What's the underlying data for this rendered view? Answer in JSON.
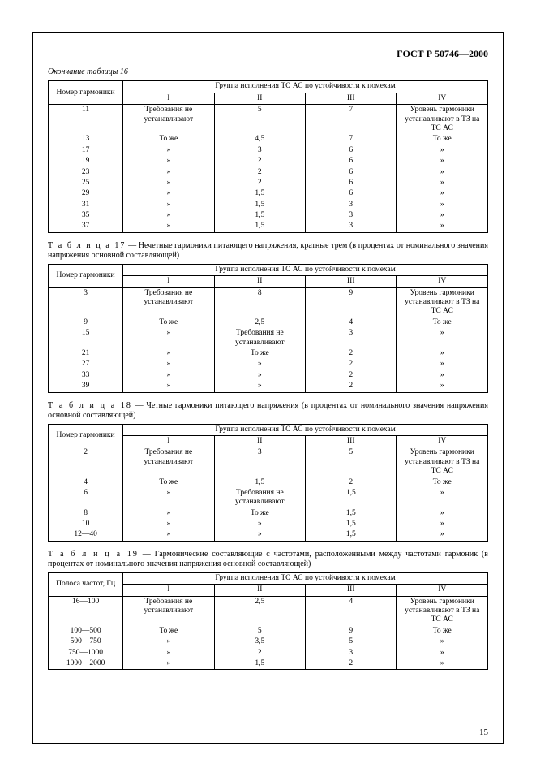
{
  "doc_code": "ГОСТ Р 50746—2000",
  "page_number": "15",
  "group_header": "Группа исполнения ТС АС по устойчивости к помехам",
  "group_cols": [
    "I",
    "II",
    "III",
    "IV"
  ],
  "col_harm": "Номер гармоники",
  "col_band": "Полоса частот, Гц",
  "text": {
    "req_not_set": "Требования не устанавливают",
    "same": "То же",
    "ditto": "»",
    "level_set": "Уровень гармоники устанавливают в ТЗ на ТС АС"
  },
  "table16": {
    "caption": "Окончание таблицы 16",
    "rows": [
      {
        "n": "11",
        "c2": "req",
        "c3": "5",
        "c4": "7",
        "c5": "level"
      },
      {
        "n": "13",
        "c2": "same",
        "c3": "4,5",
        "c4": "7",
        "c5": "same"
      },
      {
        "n": "17",
        "c2": "ditto",
        "c3": "3",
        "c4": "6",
        "c5": "ditto"
      },
      {
        "n": "19",
        "c2": "ditto",
        "c3": "2",
        "c4": "6",
        "c5": "ditto"
      },
      {
        "n": "23",
        "c2": "ditto",
        "c3": "2",
        "c4": "6",
        "c5": "ditto"
      },
      {
        "n": "25",
        "c2": "ditto",
        "c3": "2",
        "c4": "6",
        "c5": "ditto"
      },
      {
        "n": "29",
        "c2": "ditto",
        "c3": "1,5",
        "c4": "6",
        "c5": "ditto"
      },
      {
        "n": "31",
        "c2": "ditto",
        "c3": "1,5",
        "c4": "3",
        "c5": "ditto"
      },
      {
        "n": "35",
        "c2": "ditto",
        "c3": "1,5",
        "c4": "3",
        "c5": "ditto"
      },
      {
        "n": "37",
        "c2": "ditto",
        "c3": "1,5",
        "c4": "3",
        "c5": "ditto"
      }
    ]
  },
  "table17": {
    "caption_prefix": "Т а б л и ц а 17",
    "caption": " — Нечетные гармоники питающего напряжения, кратные трем (в процентах от номинального значения напряжения основной составляющей)",
    "rows": [
      {
        "n": "3",
        "c2": "req",
        "c3": "8",
        "c4": "9",
        "c5": "level"
      },
      {
        "n": "9",
        "c2": "same",
        "c3": "2,5",
        "c4": "4",
        "c5": "same"
      },
      {
        "n": "15",
        "c2": "ditto",
        "c3": "reqtxt",
        "c4": "3",
        "c5": "ditto"
      },
      {
        "n": "21",
        "c2": "ditto",
        "c3": "same",
        "c4": "2",
        "c5": "ditto"
      },
      {
        "n": "27",
        "c2": "ditto",
        "c3": "ditto",
        "c4": "2",
        "c5": "ditto"
      },
      {
        "n": "33",
        "c2": "ditto",
        "c3": "ditto",
        "c4": "2",
        "c5": "ditto"
      },
      {
        "n": "39",
        "c2": "ditto",
        "c3": "ditto",
        "c4": "2",
        "c5": "ditto"
      }
    ]
  },
  "table18": {
    "caption_prefix": "Т а б л и ц а 18",
    "caption": " — Четные гармоники питающего напряжения (в процентах от номинального значения напряжения основной составляющей)",
    "rows": [
      {
        "n": "2",
        "c2": "req",
        "c3": "3",
        "c4": "5",
        "c5": "level"
      },
      {
        "n": "4",
        "c2": "same",
        "c3": "1,5",
        "c4": "2",
        "c5": "same"
      },
      {
        "n": "6",
        "c2": "ditto",
        "c3": "reqtxt",
        "c4": "1,5",
        "c5": "ditto"
      },
      {
        "n": "8",
        "c2": "ditto",
        "c3": "same",
        "c4": "1,5",
        "c5": "ditto"
      },
      {
        "n": "10",
        "c2": "ditto",
        "c3": "ditto",
        "c4": "1,5",
        "c5": "ditto"
      },
      {
        "n": "12—40",
        "c2": "ditto",
        "c3": "ditto",
        "c4": "1,5",
        "c5": "ditto"
      }
    ]
  },
  "table19": {
    "caption_prefix": "Т а б л и ц а 19",
    "caption": " — Гармонические составляющие с частотами, расположенными между частотами гармоник (в процентах от номинального значения напряжения основной составляющей)",
    "rows": [
      {
        "n": "16—100",
        "c2": "req",
        "c3": "2,5",
        "c4": "4",
        "c5": "level"
      },
      {
        "n": "100—500",
        "c2": "same",
        "c3": "5",
        "c4": "9",
        "c5": "same"
      },
      {
        "n": "500—750",
        "c2": "ditto",
        "c3": "3,5",
        "c4": "5",
        "c5": "ditto"
      },
      {
        "n": "750—1000",
        "c2": "ditto",
        "c3": "2",
        "c4": "3",
        "c5": "ditto"
      },
      {
        "n": "1000—2000",
        "c2": "ditto",
        "c3": "1,5",
        "c4": "2",
        "c5": "ditto"
      }
    ]
  }
}
